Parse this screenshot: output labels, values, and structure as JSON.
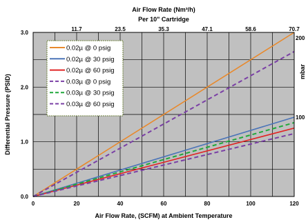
{
  "chart_data": {
    "type": "line",
    "title": "Air Flow Rate (Nm³/h)",
    "subtitle": "Per 10\" Cartridge",
    "xlabel": "Air Flow Rate, (SCFM) at Ambient Temperature",
    "ylabel": "Differential Pressure (PSID)",
    "y2label": "mbar",
    "xlim": [
      0,
      120
    ],
    "ylim": [
      0,
      3.0
    ],
    "x_ticks": [
      "0",
      "20",
      "40",
      "60",
      "80",
      "100",
      "120"
    ],
    "y_ticks": [
      "0.0",
      "1.0",
      "2.0",
      "3.0"
    ],
    "top_ticks": [
      "11.7",
      "23.5",
      "35.3",
      "47.1",
      "58.6",
      "70.7"
    ],
    "right_ticks": [
      "100",
      "200"
    ],
    "grid": true,
    "plot_background": "#c0c0c0",
    "legend_position": "top-left",
    "series": [
      {
        "name": "0.02µ @ 0 psig",
        "color": "#e8892c",
        "dash": "solid",
        "x": [
          0,
          120
        ],
        "y": [
          0,
          3.0
        ]
      },
      {
        "name": "0.02µ @ 30 psig",
        "color": "#4a74b8",
        "dash": "solid",
        "x": [
          0,
          120
        ],
        "y": [
          0,
          1.45
        ]
      },
      {
        "name": "0.02µ @ 60 psig",
        "color": "#e02424",
        "dash": "solid",
        "x": [
          0,
          120
        ],
        "y": [
          0,
          1.25
        ]
      },
      {
        "name": "0.03µ @ 0 psig",
        "color": "#7a3fa5",
        "dash": "dashed",
        "x": [
          0,
          120
        ],
        "y": [
          0,
          2.65
        ]
      },
      {
        "name": "0.03µ @ 30 psig",
        "color": "#1fa83a",
        "dash": "dashed",
        "x": [
          0,
          120
        ],
        "y": [
          0,
          1.35
        ]
      },
      {
        "name": "0.03µ @ 60 psig",
        "color": "#7a3fa5",
        "dash": "dashed",
        "x": [
          0,
          120
        ],
        "y": [
          0,
          1.15
        ]
      }
    ]
  }
}
